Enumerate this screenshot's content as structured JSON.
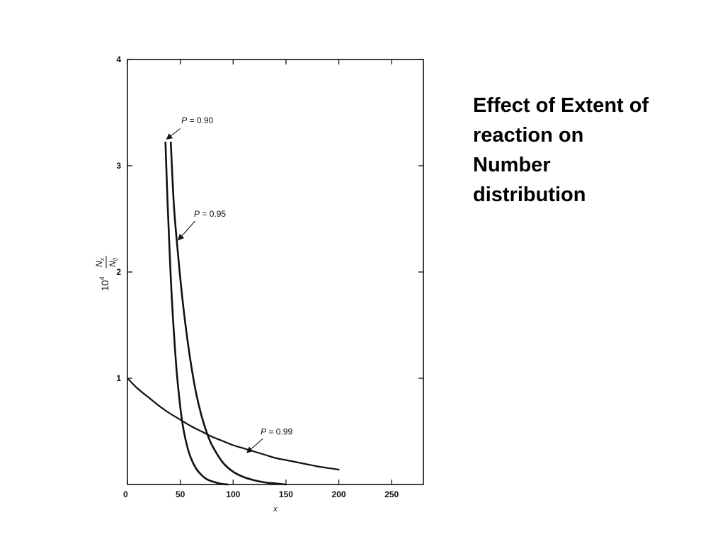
{
  "slide": {
    "title_lines": [
      "Effect of Extent of",
      "reaction on",
      "Number",
      "distribution"
    ]
  },
  "chart_data": {
    "type": "line",
    "xlabel": "x",
    "ylabel": {
      "prefix": "10",
      "exponent": "4",
      "numerator": "N",
      "numerator_sub": "x",
      "denominator": "N",
      "denominator_sub": "0"
    },
    "xlim": [
      0,
      280
    ],
    "ylim": [
      0,
      4
    ],
    "x_ticks": [
      0,
      50,
      100,
      150,
      200,
      250
    ],
    "y_ticks": [
      1,
      2,
      3,
      4
    ],
    "grid": false,
    "series": [
      {
        "name": "P = 0.90",
        "x": [
          36,
          38,
          40,
          42,
          45,
          48,
          52,
          56,
          60,
          65,
          70,
          75,
          80,
          85,
          90,
          95
        ],
        "y": [
          3.22,
          2.65,
          2.17,
          1.75,
          1.27,
          0.91,
          0.58,
          0.38,
          0.25,
          0.15,
          0.09,
          0.05,
          0.03,
          0.015,
          0.005,
          0.0
        ]
      },
      {
        "name": "P = 0.95",
        "x": [
          41,
          44,
          48,
          52,
          56,
          60,
          65,
          70,
          75,
          80,
          90,
          100,
          110,
          120,
          130,
          140,
          150
        ],
        "y": [
          3.22,
          2.62,
          2.15,
          1.75,
          1.42,
          1.14,
          0.86,
          0.65,
          0.49,
          0.37,
          0.21,
          0.12,
          0.07,
          0.04,
          0.02,
          0.01,
          0.0
        ]
      },
      {
        "name": "P = 0.99",
        "x": [
          1,
          10,
          20,
          30,
          40,
          50,
          60,
          70,
          80,
          90,
          100,
          110,
          120,
          130,
          140,
          150,
          160,
          170,
          180,
          190,
          200
        ],
        "y": [
          0.99,
          0.9,
          0.82,
          0.74,
          0.67,
          0.61,
          0.55,
          0.5,
          0.45,
          0.41,
          0.37,
          0.34,
          0.31,
          0.28,
          0.25,
          0.23,
          0.21,
          0.19,
          0.17,
          0.155,
          0.14
        ]
      }
    ],
    "annotations": [
      {
        "series": "P = 0.90",
        "label_parts": [
          "P",
          " = 0.90"
        ],
        "text_at": [
          51,
          3.4
        ],
        "arrow_from": [
          50,
          3.35
        ],
        "arrow_to": [
          37,
          3.25
        ]
      },
      {
        "series": "P = 0.95",
        "label_parts": [
          "P",
          " = 0.95"
        ],
        "text_at": [
          63,
          2.52
        ],
        "arrow_from": [
          64,
          2.48
        ],
        "arrow_to": [
          48,
          2.3
        ]
      },
      {
        "series": "P = 0.99",
        "label_parts": [
          "P",
          " = 0.99"
        ],
        "text_at": [
          126,
          0.47
        ],
        "arrow_from": [
          128,
          0.43
        ],
        "arrow_to": [
          113,
          0.3
        ]
      }
    ]
  }
}
